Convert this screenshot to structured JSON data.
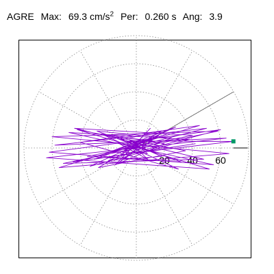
{
  "header": {
    "station": "AGRE",
    "max_label": "Max:",
    "max_value": "69.3 cm/s",
    "max_exponent": "2",
    "per_label": "Per:",
    "per_value": "0.260 s",
    "ang_label": "Ang:",
    "ang_value": "3.9"
  },
  "chart_data": {
    "type": "line",
    "coordinate_system": "polar",
    "title": "AGRE  Max: 69.3 cm/s2  Per: 0.260 s  Ang: 3.9",
    "r_ticks": [
      20,
      40,
      60
    ],
    "r_tick_labels": [
      "20",
      "40",
      "60"
    ],
    "r_max": 80,
    "grid": true,
    "grid_style": "dotted",
    "spoke_angles_deg": [
      0,
      30,
      60,
      90,
      120,
      150,
      180,
      210,
      240,
      270,
      300,
      330
    ],
    "max_marker": {
      "amplitude": 69.3,
      "angle_deg": 3.9,
      "color": "#009966"
    },
    "direction_line_angle_deg": 30,
    "series": [
      {
        "color": "#8800cc",
        "points": [
          [
            0,
            0
          ],
          [
            4,
            2
          ],
          [
            -5,
            6
          ],
          [
            8,
            -4
          ],
          [
            -10,
            -3
          ],
          [
            12,
            5
          ],
          [
            -14,
            8
          ],
          [
            18,
            -6
          ],
          [
            -20,
            -9
          ],
          [
            25,
            7
          ],
          [
            -28,
            12
          ],
          [
            32,
            -10
          ],
          [
            -35,
            -6
          ],
          [
            40,
            9
          ],
          [
            -44,
            14
          ],
          [
            48,
            -8
          ],
          [
            -52,
            -11
          ],
          [
            58,
            12
          ],
          [
            -60,
            8
          ],
          [
            66,
            -4
          ],
          [
            -55,
            -14
          ],
          [
            45,
            16
          ],
          [
            -40,
            4
          ],
          [
            30,
            -15
          ],
          [
            -25,
            10
          ],
          [
            20,
            3
          ],
          [
            -15,
            -12
          ],
          [
            10,
            14
          ],
          [
            -8,
            -5
          ],
          [
            60,
            13
          ],
          [
            -62,
            -3
          ],
          [
            55,
            -12
          ],
          [
            -48,
            11
          ],
          [
            38,
            6
          ],
          [
            -33,
            -13
          ],
          [
            28,
            15
          ],
          [
            -22,
            -4
          ],
          [
            16,
            9
          ],
          [
            -12,
            -10
          ],
          [
            6,
            4
          ],
          [
            -3,
            2
          ],
          [
            22,
            10
          ],
          [
            -30,
            -8
          ],
          [
            42,
            3
          ],
          [
            -45,
            -10
          ],
          [
            50,
            14
          ],
          [
            -58,
            2
          ],
          [
            64,
            7
          ],
          [
            -64,
            -7
          ],
          [
            52,
            -15
          ],
          [
            -42,
            13
          ],
          [
            35,
            -2
          ],
          [
            -27,
            -14
          ],
          [
            18,
            12
          ],
          [
            -10,
            6
          ],
          [
            3,
            -3
          ],
          [
            69.1,
            4.7
          ],
          [
            -5,
            5
          ],
          [
            8,
            -8
          ],
          [
            -12,
            3
          ],
          [
            0,
            0
          ]
        ]
      }
    ]
  }
}
